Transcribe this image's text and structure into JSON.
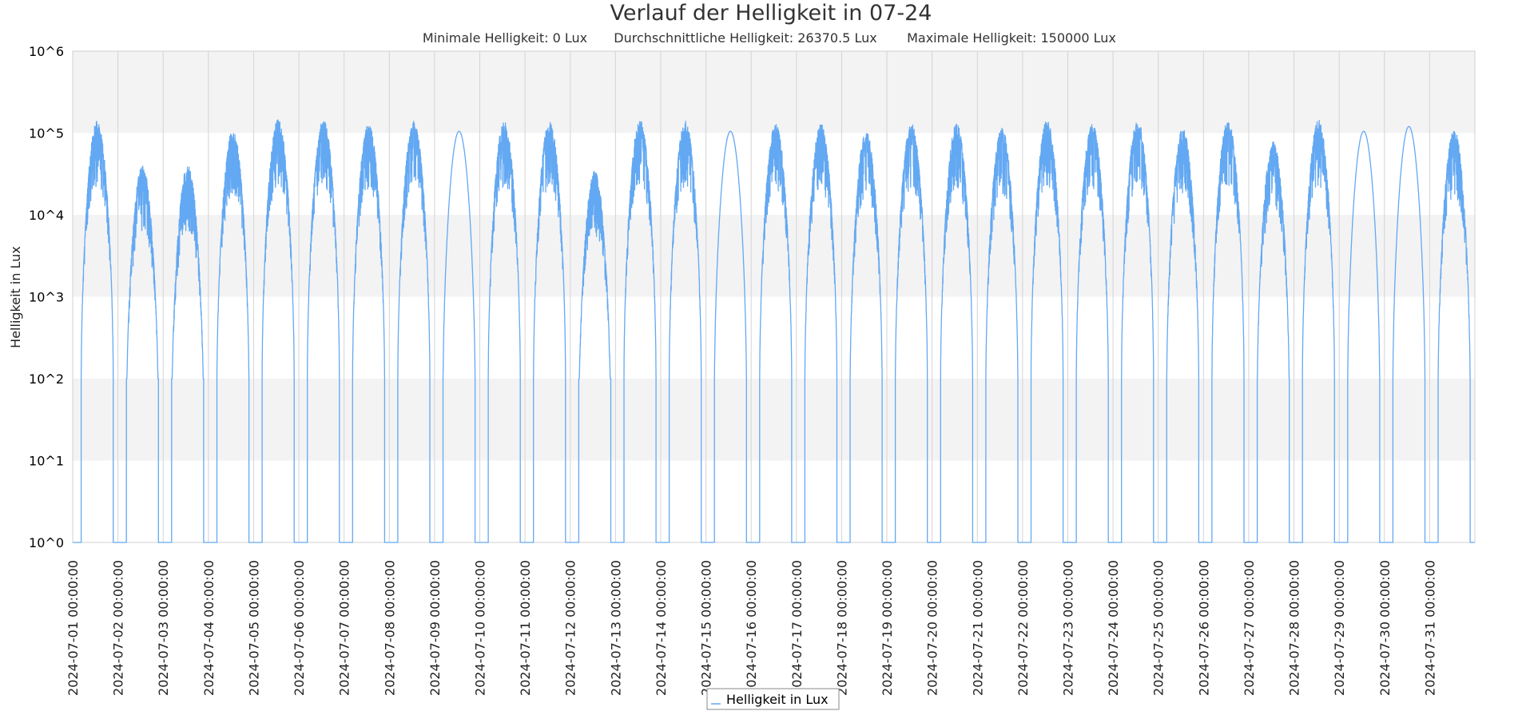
{
  "chart_data": {
    "type": "line",
    "title": "Verlauf der Helligkeit in 07-24",
    "subtitle": [
      "Minimale Helligkeit: 0 Lux",
      "Durchschnittliche Helligkeit: 26370.5 Lux",
      "Maximale Helligkeit: 150000 Lux"
    ],
    "xlabel": "",
    "ylabel": "Helligkeit in Lux",
    "y_scale": "log",
    "ylim": [
      1,
      1000000
    ],
    "yticks": [
      "10^0",
      "10^1",
      "10^2",
      "10^3",
      "10^4",
      "10^5",
      "10^6"
    ],
    "xlim": [
      "2024-07-01 00:00:00",
      "2024-08-01 00:00:00"
    ],
    "xticks": [
      "2024-07-01 00:00:00",
      "2024-07-02 00:00:00",
      "2024-07-03 00:00:00",
      "2024-07-04 00:00:00",
      "2024-07-05 00:00:00",
      "2024-07-06 00:00:00",
      "2024-07-07 00:00:00",
      "2024-07-08 00:00:00",
      "2024-07-09 00:00:00",
      "2024-07-10 00:00:00",
      "2024-07-11 00:00:00",
      "2024-07-12 00:00:00",
      "2024-07-13 00:00:00",
      "2024-07-14 00:00:00",
      "2024-07-15 00:00:00",
      "2024-07-16 00:00:00",
      "2024-07-17 00:00:00",
      "2024-07-18 00:00:00",
      "2024-07-19 00:00:00",
      "2024-07-20 00:00:00",
      "2024-07-21 00:00:00",
      "2024-07-22 00:00:00",
      "2024-07-23 00:00:00",
      "2024-07-24 00:00:00",
      "2024-07-25 00:00:00",
      "2024-07-26 00:00:00",
      "2024-07-27 00:00:00",
      "2024-07-28 00:00:00",
      "2024-07-29 00:00:00",
      "2024-07-30 00:00:00",
      "2024-07-31 00:00:00"
    ],
    "grid": true,
    "legend_position": "bottom",
    "series": [
      {
        "name": "Helligkeit in Lux",
        "color": "#63a8f2",
        "daily": [
          {
            "date": "2024-07-01",
            "sunrise": "04:30",
            "sunset": "21:30",
            "peak_lux": 140000,
            "noisy": true
          },
          {
            "date": "2024-07-02",
            "sunrise": "04:30",
            "sunset": "21:30",
            "peak_lux": 40000,
            "noisy": true
          },
          {
            "date": "2024-07-03",
            "sunrise": "04:30",
            "sunset": "21:30",
            "peak_lux": 40000,
            "noisy": true
          },
          {
            "date": "2024-07-04",
            "sunrise": "04:30",
            "sunset": "21:30",
            "peak_lux": 110000,
            "noisy": true
          },
          {
            "date": "2024-07-05",
            "sunrise": "04:30",
            "sunset": "21:30",
            "peak_lux": 145000,
            "noisy": true
          },
          {
            "date": "2024-07-06",
            "sunrise": "04:30",
            "sunset": "21:30",
            "peak_lux": 145000,
            "noisy": true
          },
          {
            "date": "2024-07-07",
            "sunrise": "04:30",
            "sunset": "21:30",
            "peak_lux": 130000,
            "noisy": true
          },
          {
            "date": "2024-07-08",
            "sunrise": "04:30",
            "sunset": "21:30",
            "peak_lux": 140000,
            "noisy": true
          },
          {
            "date": "2024-07-09",
            "sunrise": "04:30",
            "sunset": "21:30",
            "peak_lux": 105000,
            "noisy": false
          },
          {
            "date": "2024-07-10",
            "sunrise": "04:30",
            "sunset": "21:30",
            "peak_lux": 140000,
            "noisy": true
          },
          {
            "date": "2024-07-11",
            "sunrise": "04:30",
            "sunset": "21:30",
            "peak_lux": 140000,
            "noisy": true
          },
          {
            "date": "2024-07-12",
            "sunrise": "04:30",
            "sunset": "21:30",
            "peak_lux": 35000,
            "noisy": true
          },
          {
            "date": "2024-07-13",
            "sunrise": "04:30",
            "sunset": "21:30",
            "peak_lux": 145000,
            "noisy": true
          },
          {
            "date": "2024-07-14",
            "sunrise": "04:30",
            "sunset": "21:30",
            "peak_lux": 140000,
            "noisy": true
          },
          {
            "date": "2024-07-15",
            "sunrise": "04:30",
            "sunset": "21:30",
            "peak_lux": 105000,
            "noisy": false
          },
          {
            "date": "2024-07-16",
            "sunrise": "04:30",
            "sunset": "21:30",
            "peak_lux": 130000,
            "noisy": true
          },
          {
            "date": "2024-07-17",
            "sunrise": "04:30",
            "sunset": "21:30",
            "peak_lux": 130000,
            "noisy": true
          },
          {
            "date": "2024-07-18",
            "sunrise": "04:30",
            "sunset": "21:30",
            "peak_lux": 105000,
            "noisy": true
          },
          {
            "date": "2024-07-19",
            "sunrise": "04:30",
            "sunset": "21:30",
            "peak_lux": 130000,
            "noisy": true
          },
          {
            "date": "2024-07-20",
            "sunrise": "04:30",
            "sunset": "21:30",
            "peak_lux": 130000,
            "noisy": true
          },
          {
            "date": "2024-07-21",
            "sunrise": "04:30",
            "sunset": "21:30",
            "peak_lux": 115000,
            "noisy": true
          },
          {
            "date": "2024-07-22",
            "sunrise": "04:30",
            "sunset": "21:30",
            "peak_lux": 145000,
            "noisy": true
          },
          {
            "date": "2024-07-23",
            "sunrise": "04:30",
            "sunset": "21:30",
            "peak_lux": 130000,
            "noisy": true
          },
          {
            "date": "2024-07-24",
            "sunrise": "04:30",
            "sunset": "21:30",
            "peak_lux": 145000,
            "noisy": true
          },
          {
            "date": "2024-07-25",
            "sunrise": "04:30",
            "sunset": "21:30",
            "peak_lux": 115000,
            "noisy": true
          },
          {
            "date": "2024-07-26",
            "sunrise": "04:30",
            "sunset": "21:30",
            "peak_lux": 145000,
            "noisy": true
          },
          {
            "date": "2024-07-27",
            "sunrise": "04:30",
            "sunset": "21:30",
            "peak_lux": 80000,
            "noisy": true
          },
          {
            "date": "2024-07-28",
            "sunrise": "04:30",
            "sunset": "21:30",
            "peak_lux": 145000,
            "noisy": true
          },
          {
            "date": "2024-07-29",
            "sunrise": "04:30",
            "sunset": "21:30",
            "peak_lux": 105000,
            "noisy": false
          },
          {
            "date": "2024-07-30",
            "sunrise": "04:30",
            "sunset": "21:30",
            "peak_lux": 120000,
            "noisy": false
          },
          {
            "date": "2024-07-31",
            "sunrise": "04:30",
            "sunset": "21:30",
            "peak_lux": 110000,
            "noisy": true
          }
        ]
      }
    ]
  }
}
